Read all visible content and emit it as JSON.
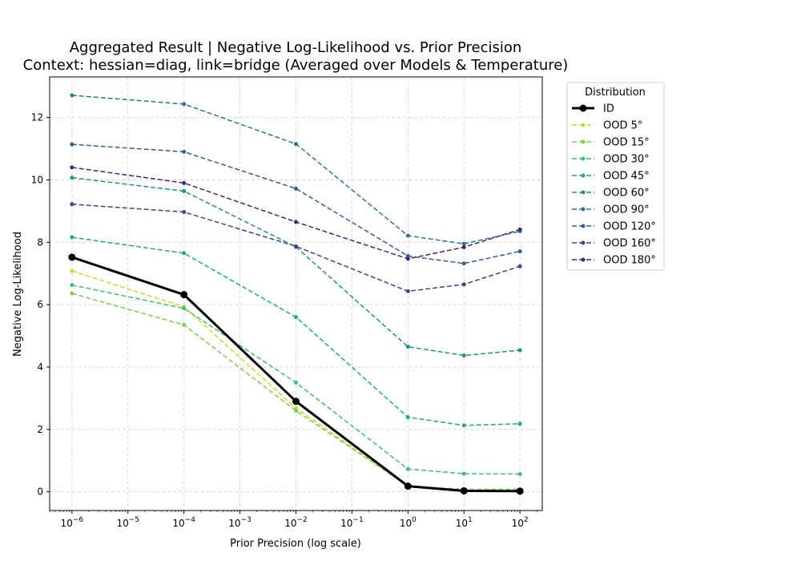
{
  "chart_data": {
    "type": "line",
    "title": "Aggregated Result | Negative Log-Likelihood vs. Prior Precision",
    "subtitle": "Context: hessian=diag, link=bridge (Averaged over Models & Temperature)",
    "xlabel": "Prior Precision (log scale)",
    "ylabel": "Negative Log-Likelihood",
    "xscale": "log",
    "xlim": [
      4e-07,
      250
    ],
    "ylim": [
      -0.6,
      13.3
    ],
    "grid": true,
    "legend": {
      "title": "Distribution",
      "placement": "outside-top-right"
    },
    "x_ticks": [
      {
        "value": 1e-06,
        "base": "10",
        "exp": "−6"
      },
      {
        "value": 1e-05,
        "base": "10",
        "exp": "−5"
      },
      {
        "value": 0.0001,
        "base": "10",
        "exp": "−4"
      },
      {
        "value": 0.001,
        "base": "10",
        "exp": "−3"
      },
      {
        "value": 0.01,
        "base": "10",
        "exp": "−2"
      },
      {
        "value": 0.1,
        "base": "10",
        "exp": "−1"
      },
      {
        "value": 1,
        "base": "10",
        "exp": "0"
      },
      {
        "value": 10,
        "base": "10",
        "exp": "1"
      },
      {
        "value": 100,
        "base": "10",
        "exp": "2"
      }
    ],
    "y_ticks": [
      0,
      2,
      4,
      6,
      8,
      10,
      12
    ],
    "x": [
      1e-06,
      0.0001,
      0.01,
      1,
      10,
      100
    ],
    "series": [
      {
        "name": "ID",
        "color": "#000000",
        "style": "solid",
        "marker": "large",
        "values": [
          7.52,
          6.32,
          2.9,
          0.18,
          0.03,
          0.02
        ]
      },
      {
        "name": "OOD 5°",
        "color": "#bddf26",
        "style": "dashed",
        "values": [
          7.08,
          5.93,
          2.68,
          0.18,
          0.05,
          0.05
        ]
      },
      {
        "name": "OOD 15°",
        "color": "#7ad151",
        "style": "dashed",
        "values": [
          6.36,
          5.35,
          2.6,
          0.18,
          0.08,
          0.08
        ]
      },
      {
        "name": "OOD 30°",
        "color": "#44bf70",
        "style": "dashed",
        "values": [
          6.63,
          5.88,
          3.5,
          0.73,
          0.58,
          0.57
        ]
      },
      {
        "name": "OOD 45°",
        "color": "#22a884",
        "style": "dashed",
        "values": [
          8.16,
          7.65,
          5.6,
          2.39,
          2.13,
          2.18
        ]
      },
      {
        "name": "OOD 60°",
        "color": "#21918c",
        "style": "dashed",
        "values": [
          10.07,
          9.64,
          7.85,
          4.65,
          4.37,
          4.54
        ]
      },
      {
        "name": "OOD 90°",
        "color": "#2a788e",
        "style": "dashed",
        "values": [
          12.71,
          12.43,
          11.15,
          8.21,
          7.95,
          8.35
        ]
      },
      {
        "name": "OOD 120°",
        "color": "#355f8d",
        "style": "dashed",
        "values": [
          11.14,
          10.9,
          9.72,
          7.56,
          7.32,
          7.71
        ]
      },
      {
        "name": "OOD 160°",
        "color": "#414487",
        "style": "dashed",
        "values": [
          9.22,
          8.97,
          7.87,
          6.43,
          6.65,
          7.23
        ]
      },
      {
        "name": "OOD 180°",
        "color": "#482475",
        "style": "dashed",
        "values": [
          10.4,
          9.9,
          8.65,
          7.47,
          7.84,
          8.41
        ]
      }
    ]
  }
}
